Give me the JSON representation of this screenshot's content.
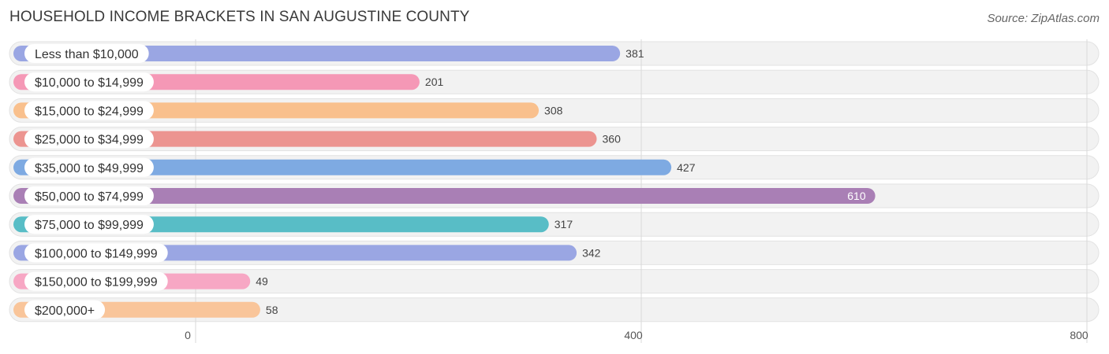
{
  "title": "HOUSEHOLD INCOME BRACKETS IN SAN AUGUSTINE COUNTY",
  "source": "Source: ZipAtlas.com",
  "chart_data": {
    "type": "bar",
    "orientation": "horizontal",
    "title": "HOUSEHOLD INCOME BRACKETS IN SAN AUGUSTINE COUNTY",
    "xlabel": "",
    "ylabel": "",
    "xlim": [
      0,
      800
    ],
    "ticks": [
      0,
      400,
      800
    ],
    "tick_labels": [
      "0",
      "400",
      "800"
    ],
    "grid": true,
    "categories": [
      "Less than $10,000",
      "$10,000 to $14,999",
      "$15,000 to $24,999",
      "$25,000 to $34,999",
      "$35,000 to $49,999",
      "$50,000 to $74,999",
      "$75,000 to $99,999",
      "$100,000 to $149,999",
      "$150,000 to $199,999",
      "$200,000+"
    ],
    "values": [
      381,
      201,
      308,
      360,
      427,
      610,
      317,
      342,
      49,
      58
    ],
    "colors": [
      "#9aa6e3",
      "#f598b6",
      "#f9c08d",
      "#ec9490",
      "#7eaae2",
      "#a97fb5",
      "#58bdc6",
      "#9aa6e3",
      "#f7a7c4",
      "#f9c59a"
    ]
  }
}
